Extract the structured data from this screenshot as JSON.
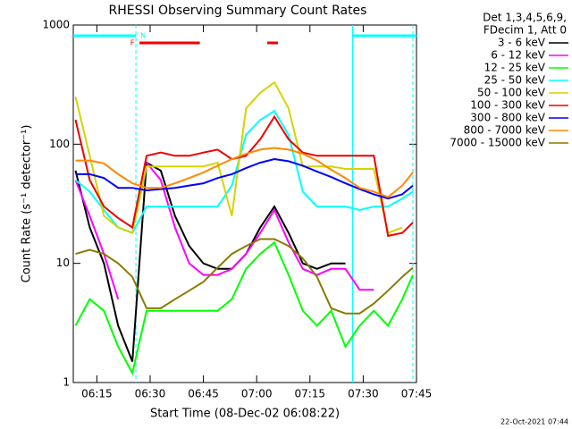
{
  "chart_data": {
    "type": "line",
    "title": "RHESSI Observing Summary Count Rates",
    "x_label": "Start Time (08-Dec-02 06:08:22)",
    "y_label": "Count Rate (s⁻¹ detector⁻¹)",
    "legend_header": [
      "Det 1,3,4,5,6,9,",
      "FDecim 1, Att 0"
    ],
    "footer": "22-Oct-2021 07:44",
    "log_y": true,
    "xlim": [
      "06:08:22",
      "07:45:00"
    ],
    "xticks": [
      "06:15",
      "06:30",
      "06:45",
      "07:00",
      "07:15",
      "07:30",
      "07:45"
    ],
    "ylim": [
      1,
      1000
    ],
    "yticks": [
      1,
      10,
      100,
      1000
    ],
    "x": [
      "06:09",
      "06:13",
      "06:17",
      "06:21",
      "06:25",
      "06:29",
      "06:33",
      "06:37",
      "06:41",
      "06:45",
      "06:49",
      "06:53",
      "06:57",
      "07:01",
      "07:05",
      "07:09",
      "07:13",
      "07:17",
      "07:21",
      "07:25",
      "07:29",
      "07:33",
      "07:37",
      "07:41",
      "07:44"
    ],
    "series": [
      {
        "name": "3 - 6 keV",
        "color": "#000000",
        "values": [
          60,
          20,
          10,
          3,
          1.5,
          70,
          60,
          25,
          14,
          10,
          9,
          9,
          12,
          20,
          30,
          18,
          10,
          9,
          10,
          10,
          null,
          null,
          null,
          null,
          null
        ]
      },
      {
        "name": "6 - 12 keV",
        "color": "#ff00ff",
        "values": [
          50,
          25,
          12,
          5,
          null,
          70,
          50,
          20,
          10,
          8,
          8,
          9,
          12,
          18,
          28,
          15,
          9,
          8,
          9,
          9,
          6,
          6,
          null,
          null,
          null
        ]
      },
      {
        "name": "12 - 25 keV",
        "color": "#00ff00",
        "values": [
          3,
          5,
          4,
          2,
          1.2,
          4,
          4,
          4,
          4,
          4,
          4,
          5,
          9,
          12,
          15,
          8,
          4,
          3,
          4,
          2,
          3,
          4,
          3,
          5,
          8
        ]
      },
      {
        "name": "25 - 50 keV",
        "color": "#00ffff",
        "values": [
          50,
          40,
          28,
          20,
          18,
          30,
          30,
          30,
          30,
          30,
          30,
          45,
          120,
          160,
          190,
          120,
          40,
          30,
          30,
          30,
          28,
          30,
          30,
          35,
          40
        ]
      },
      {
        "name": "50 - 100 keV",
        "color": "#d4d400",
        "values": [
          250,
          80,
          25,
          20,
          18,
          65,
          65,
          65,
          65,
          65,
          70,
          25,
          200,
          270,
          330,
          200,
          65,
          65,
          65,
          62,
          62,
          62,
          18,
          20,
          null
        ]
      },
      {
        "name": "100 - 300 keV",
        "color": "#ee0000",
        "values": [
          160,
          50,
          30,
          24,
          20,
          80,
          85,
          80,
          80,
          85,
          90,
          75,
          80,
          110,
          170,
          110,
          85,
          80,
          80,
          80,
          80,
          80,
          17,
          18,
          22
        ]
      },
      {
        "name": "300 - 800 keV",
        "color": "#0000ff",
        "values": [
          56,
          56,
          52,
          43,
          43,
          41,
          42,
          43,
          45,
          47,
          52,
          56,
          63,
          70,
          75,
          72,
          66,
          59,
          53,
          47,
          42,
          38,
          35,
          38,
          45
        ]
      },
      {
        "name": "800 - 7000 keV",
        "color": "#ff8800",
        "values": [
          73,
          73,
          69,
          56,
          47,
          43,
          43,
          47,
          52,
          58,
          66,
          75,
          83,
          90,
          93,
          90,
          83,
          73,
          61,
          52,
          43,
          40,
          36,
          45,
          58
        ]
      },
      {
        "name": "7000 - 15000 keV",
        "color": "#8b7a00",
        "values": [
          12,
          13,
          12,
          10,
          7.7,
          4.2,
          4.2,
          5,
          5.9,
          7,
          9.2,
          12,
          14,
          16,
          16,
          14,
          11,
          7.7,
          4.2,
          3.8,
          3.8,
          4.6,
          5.9,
          7.7,
          9.2
        ]
      }
    ],
    "flags": [
      {
        "label": "N",
        "color": "#00ffff",
        "segments": [
          [
            "06:08:22",
            "06:26"
          ],
          [
            "07:27",
            "07:45"
          ]
        ]
      },
      {
        "label": "F",
        "color": "#ee0000",
        "segments": [
          [
            "06:27",
            "06:44"
          ],
          [
            "07:03",
            "07:06"
          ]
        ]
      }
    ],
    "vlines": [
      {
        "x": "06:26",
        "style": "dashed",
        "color": "#00ffff"
      },
      {
        "x": "07:27",
        "style": "solid",
        "color": "#00ffff"
      },
      {
        "x": "07:44",
        "style": "dashed",
        "color": "#00ffff"
      }
    ]
  }
}
